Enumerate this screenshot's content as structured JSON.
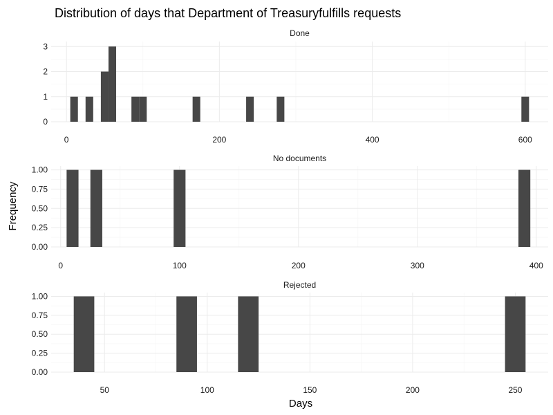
{
  "chart_data": {
    "type": "bar",
    "title": "Distribution of days that Department of Treasuryfulfills requests",
    "xlabel": "Days",
    "ylabel": "Frequency",
    "bar_color": "#474747",
    "grid": true,
    "facets": [
      {
        "name": "Done",
        "xlim": [
          -20,
          630
        ],
        "ylim": [
          0,
          3.2
        ],
        "x_ticks": [
          0,
          200,
          400,
          600
        ],
        "y_ticks": [
          0,
          1,
          2,
          3
        ],
        "y_tick_labels": [
          "0",
          "1",
          "2",
          "3"
        ],
        "bin_width": 10,
        "bins": [
          {
            "x": 10,
            "count": 1
          },
          {
            "x": 30,
            "count": 1
          },
          {
            "x": 50,
            "count": 2
          },
          {
            "x": 60,
            "count": 3
          },
          {
            "x": 90,
            "count": 1
          },
          {
            "x": 100,
            "count": 1
          },
          {
            "x": 170,
            "count": 1
          },
          {
            "x": 240,
            "count": 1
          },
          {
            "x": 280,
            "count": 1
          },
          {
            "x": 600,
            "count": 1
          }
        ]
      },
      {
        "name": "No documents",
        "xlim": [
          -8,
          410
        ],
        "ylim": [
          0,
          1.05
        ],
        "x_ticks": [
          0,
          100,
          200,
          300,
          400
        ],
        "y_ticks": [
          0,
          0.25,
          0.5,
          0.75,
          1
        ],
        "y_tick_labels": [
          "0.00",
          "0.25",
          "0.50",
          "0.75",
          "1.00"
        ],
        "bin_width": 10,
        "bins": [
          {
            "x": 10,
            "count": 1
          },
          {
            "x": 30,
            "count": 1
          },
          {
            "x": 100,
            "count": 1
          },
          {
            "x": 390,
            "count": 1
          }
        ]
      },
      {
        "name": "Rejected",
        "xlim": [
          24,
          266
        ],
        "ylim": [
          0,
          1.05
        ],
        "x_ticks": [
          50,
          100,
          150,
          200,
          250
        ],
        "y_ticks": [
          0,
          0.25,
          0.5,
          0.75,
          1
        ],
        "y_tick_labels": [
          "0.00",
          "0.25",
          "0.50",
          "0.75",
          "1.00"
        ],
        "bin_width": 10,
        "bins": [
          {
            "x": 40,
            "count": 1
          },
          {
            "x": 90,
            "count": 1
          },
          {
            "x": 120,
            "count": 1
          },
          {
            "x": 250,
            "count": 1
          }
        ]
      }
    ]
  }
}
